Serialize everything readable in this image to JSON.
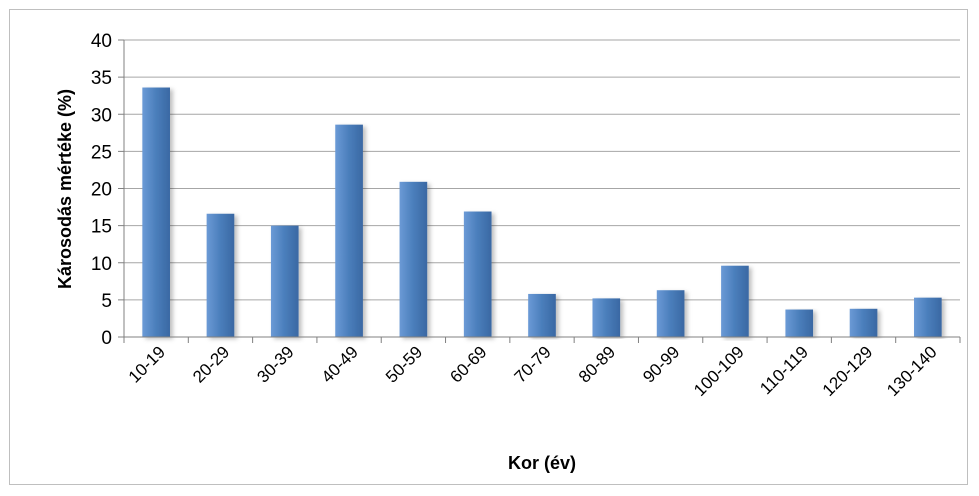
{
  "chart_data": {
    "type": "bar",
    "title": "",
    "xlabel": "Kor (év)",
    "ylabel": "Károsodás mértéke (%)",
    "ylim": [
      0,
      40
    ],
    "yticks": [
      0,
      5,
      10,
      15,
      20,
      25,
      30,
      35,
      40
    ],
    "grid": true,
    "legend": "none",
    "categories": [
      "10-19",
      "20-29",
      "30-39",
      "40-49",
      "50-59",
      "60-69",
      "70-79",
      "80-89",
      "90-99",
      "100-109",
      "110-119",
      "120-129",
      "130-140"
    ],
    "values": [
      33.6,
      16.6,
      15.0,
      28.6,
      20.9,
      16.9,
      5.8,
      5.2,
      6.3,
      9.6,
      3.7,
      3.8,
      5.3
    ],
    "colors": {
      "bar": "#4a7ebb",
      "bar_light": "#6b9ad6",
      "bar_dark": "#3a68a3",
      "grid": "#a6a6a6",
      "axis": "#808080"
    }
  }
}
